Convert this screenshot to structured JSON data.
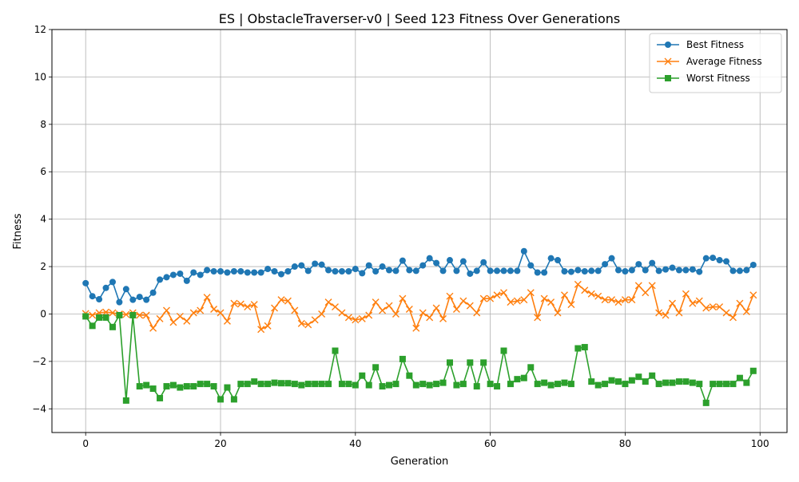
{
  "chart_data": {
    "type": "line",
    "title": "ES | ObstacleTraverser-v0 | Seed 123 Fitness Over Generations",
    "xlabel": "Generation",
    "ylabel": "Fitness",
    "xlim": [
      -5,
      104
    ],
    "ylim": [
      -5,
      12
    ],
    "xticks": [
      0,
      20,
      40,
      60,
      80,
      100
    ],
    "yticks": [
      -4,
      -2,
      0,
      2,
      4,
      6,
      8,
      10,
      12
    ],
    "grid": true,
    "legend": "top-right",
    "series": [
      {
        "name": "Best Fitness",
        "color": "#1f77b4",
        "marker": "circle",
        "values": [
          1.3,
          0.75,
          0.62,
          1.1,
          1.35,
          0.5,
          1.05,
          0.6,
          0.72,
          0.6,
          0.9,
          1.45,
          1.55,
          1.65,
          1.7,
          1.4,
          1.75,
          1.65,
          1.85,
          1.8,
          1.8,
          1.75,
          1.8,
          1.8,
          1.75,
          1.75,
          1.75,
          1.9,
          1.8,
          1.68,
          1.8,
          2.0,
          2.05,
          1.82,
          2.12,
          2.08,
          1.85,
          1.8,
          1.8,
          1.8,
          1.9,
          1.72,
          2.05,
          1.8,
          2.0,
          1.85,
          1.82,
          2.25,
          1.85,
          1.82,
          2.05,
          2.35,
          2.15,
          1.82,
          2.27,
          1.82,
          2.22,
          1.7,
          1.82,
          2.18,
          1.82,
          1.82,
          1.82,
          1.82,
          1.82,
          2.65,
          2.05,
          1.75,
          1.75,
          2.35,
          2.27,
          1.8,
          1.78,
          1.85,
          1.8,
          1.82,
          1.82,
          2.1,
          2.35,
          1.85,
          1.8,
          1.85,
          2.1,
          1.85,
          2.15,
          1.82,
          1.88,
          1.95,
          1.85,
          1.85,
          1.88,
          1.78,
          2.35,
          2.37,
          2.27,
          2.22,
          1.82,
          1.82,
          1.85,
          2.07
        ]
      },
      {
        "name": "Average Fitness",
        "color": "#ff7f0e",
        "marker": "x",
        "values": [
          0.02,
          -0.05,
          0.05,
          0.08,
          0.05,
          0.0,
          -0.02,
          0.05,
          -0.05,
          -0.05,
          -0.6,
          -0.2,
          0.15,
          -0.35,
          -0.1,
          -0.3,
          0.05,
          0.15,
          0.7,
          0.2,
          0.05,
          -0.3,
          0.45,
          0.42,
          0.3,
          0.4,
          -0.65,
          -0.5,
          0.25,
          0.6,
          0.55,
          0.15,
          -0.4,
          -0.45,
          -0.25,
          0.0,
          0.5,
          0.3,
          0.05,
          -0.15,
          -0.25,
          -0.2,
          -0.05,
          0.5,
          0.15,
          0.35,
          0.0,
          0.65,
          0.2,
          -0.6,
          0.05,
          -0.15,
          0.25,
          -0.2,
          0.75,
          0.2,
          0.55,
          0.35,
          0.05,
          0.65,
          0.65,
          0.8,
          0.9,
          0.5,
          0.55,
          0.6,
          0.9,
          -0.15,
          0.65,
          0.5,
          0.05,
          0.8,
          0.4,
          1.25,
          1.0,
          0.85,
          0.75,
          0.6,
          0.6,
          0.5,
          0.6,
          0.6,
          1.2,
          0.9,
          1.2,
          0.05,
          -0.05,
          0.45,
          0.05,
          0.85,
          0.45,
          0.55,
          0.25,
          0.3,
          0.3,
          0.05,
          -0.15,
          0.45,
          0.1,
          0.8
        ]
      },
      {
        "name": "Worst Fitness",
        "color": "#2ca02c",
        "marker": "square",
        "values": [
          -0.1,
          -0.5,
          -0.15,
          -0.15,
          -0.55,
          -0.05,
          -3.65,
          -0.05,
          -3.05,
          -3.0,
          -3.15,
          -3.55,
          -3.05,
          -3.0,
          -3.1,
          -3.05,
          -3.05,
          -2.95,
          -2.95,
          -3.05,
          -3.6,
          -3.1,
          -3.6,
          -2.95,
          -2.95,
          -2.85,
          -2.95,
          -2.95,
          -2.9,
          -2.92,
          -2.92,
          -2.95,
          -3.0,
          -2.95,
          -2.95,
          -2.95,
          -2.95,
          -1.55,
          -2.95,
          -2.95,
          -3.0,
          -2.6,
          -3.0,
          -2.25,
          -3.05,
          -3.0,
          -2.95,
          -1.9,
          -2.6,
          -3.0,
          -2.95,
          -3.0,
          -2.95,
          -2.9,
          -2.05,
          -3.0,
          -2.95,
          -2.05,
          -3.05,
          -2.05,
          -2.95,
          -3.05,
          -1.55,
          -2.95,
          -2.75,
          -2.7,
          -2.25,
          -2.95,
          -2.9,
          -3.0,
          -2.95,
          -2.9,
          -2.95,
          -1.45,
          -1.4,
          -2.85,
          -3.0,
          -2.95,
          -2.8,
          -2.85,
          -2.95,
          -2.8,
          -2.65,
          -2.85,
          -2.6,
          -2.95,
          -2.9,
          -2.9,
          -2.85,
          -2.85,
          -2.9,
          -2.95,
          -3.75,
          -2.95,
          -2.95,
          -2.95,
          -2.95,
          -2.7,
          -2.9,
          -2.4
        ]
      }
    ]
  }
}
